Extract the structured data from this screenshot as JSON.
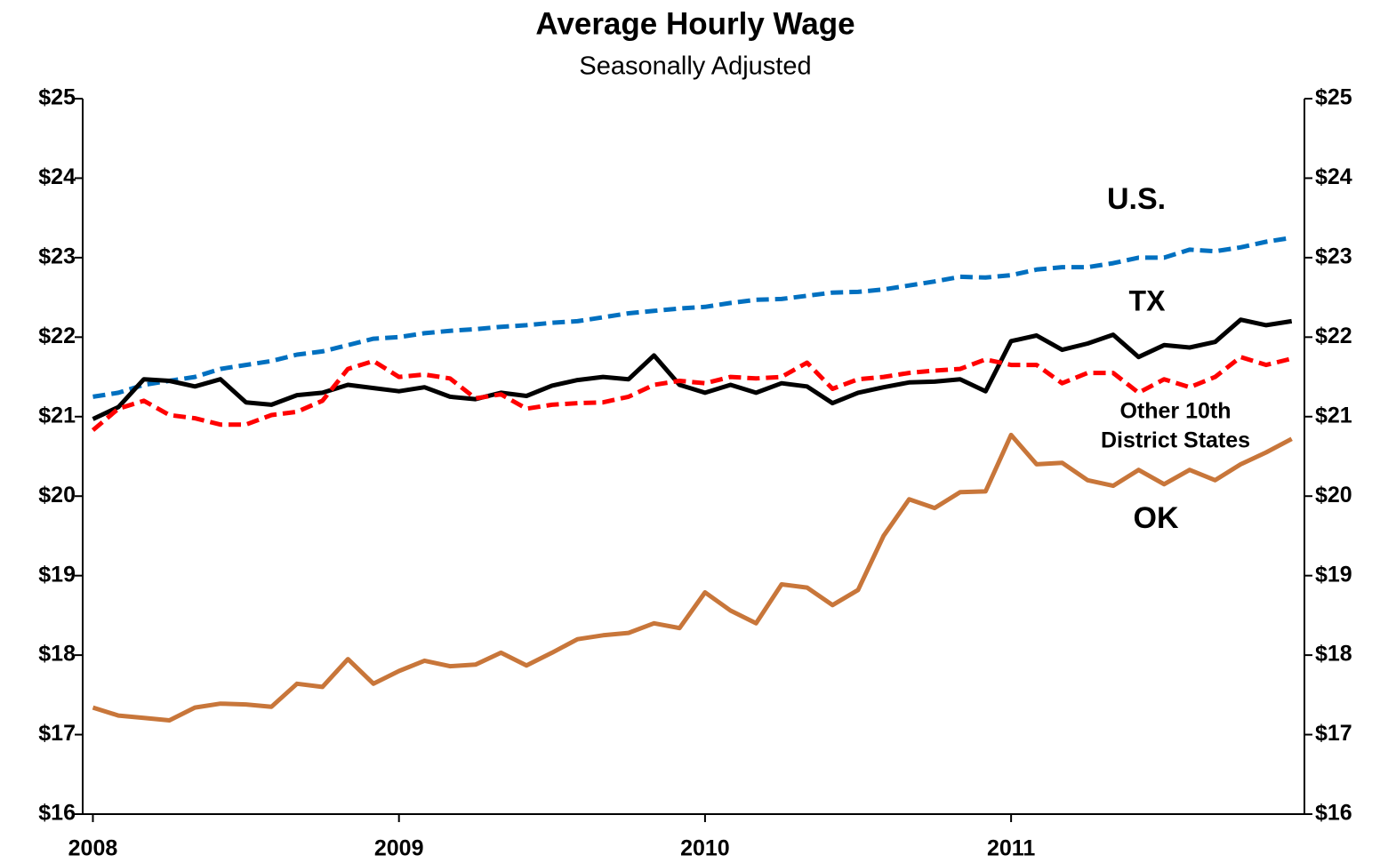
{
  "chart_data": {
    "type": "line",
    "title": "Average Hourly Wage",
    "subtitle": "Seasonally Adjusted",
    "x": [
      0,
      1,
      2,
      3,
      4,
      5,
      6,
      7,
      8,
      9,
      10,
      11,
      12,
      13,
      14,
      15,
      16,
      17,
      18,
      19,
      20,
      21,
      22,
      23,
      24,
      25,
      26,
      27,
      28,
      29,
      30,
      31,
      32,
      33,
      34,
      35,
      36,
      37,
      38,
      39,
      40,
      41,
      42,
      43,
      44,
      45,
      46,
      47
    ],
    "xlim": [
      -0.4,
      47.5
    ],
    "xticks": [
      {
        "value": 0,
        "label": "2008"
      },
      {
        "value": 12,
        "label": "2009"
      },
      {
        "value": 24,
        "label": "2010"
      },
      {
        "value": 36,
        "label": "2011"
      }
    ],
    "ylim": [
      16,
      25
    ],
    "yticks": [
      {
        "value": 16,
        "label": "$16"
      },
      {
        "value": 17,
        "label": "$17"
      },
      {
        "value": 18,
        "label": "$18"
      },
      {
        "value": 19,
        "label": "$19"
      },
      {
        "value": 20,
        "label": "$20"
      },
      {
        "value": 21,
        "label": "$21"
      },
      {
        "value": 22,
        "label": "$22"
      },
      {
        "value": 23,
        "label": "$23"
      },
      {
        "value": 24,
        "label": "$24"
      },
      {
        "value": 25,
        "label": "$25"
      }
    ],
    "y2lim": [
      16,
      25
    ],
    "y2ticks": [
      {
        "value": 16,
        "label": "$16"
      },
      {
        "value": 17,
        "label": "$17"
      },
      {
        "value": 18,
        "label": "$18"
      },
      {
        "value": 19,
        "label": "$19"
      },
      {
        "value": 20,
        "label": "$20"
      },
      {
        "value": 21,
        "label": "$21"
      },
      {
        "value": 22,
        "label": "$22"
      },
      {
        "value": 23,
        "label": "$23"
      },
      {
        "value": 24,
        "label": "$24"
      },
      {
        "value": 25,
        "label": "$25"
      }
    ],
    "series": [
      {
        "name": "U.S.",
        "color": "#0070c0",
        "dashed": true,
        "values": [
          21.25,
          21.3,
          21.4,
          21.45,
          21.5,
          21.6,
          21.65,
          21.7,
          21.78,
          21.82,
          21.9,
          21.98,
          22.0,
          22.05,
          22.08,
          22.1,
          22.13,
          22.15,
          22.18,
          22.2,
          22.25,
          22.3,
          22.33,
          22.36,
          22.38,
          22.43,
          22.47,
          22.48,
          22.52,
          22.56,
          22.57,
          22.6,
          22.65,
          22.7,
          22.76,
          22.75,
          22.78,
          22.85,
          22.88,
          22.88,
          22.93,
          23.0,
          23.0,
          23.1,
          23.08,
          23.13,
          23.2,
          23.25
        ]
      },
      {
        "name": "TX",
        "color": "#000000",
        "dashed": false,
        "values": [
          20.97,
          21.12,
          21.47,
          21.45,
          21.38,
          21.47,
          21.18,
          21.15,
          21.27,
          21.3,
          21.4,
          21.36,
          21.32,
          21.37,
          21.25,
          21.22,
          21.3,
          21.26,
          21.39,
          21.46,
          21.5,
          21.47,
          21.77,
          21.4,
          21.3,
          21.4,
          21.3,
          21.42,
          21.38,
          21.17,
          21.3,
          21.37,
          21.43,
          21.44,
          21.47,
          21.32,
          21.95,
          22.02,
          21.84,
          21.92,
          22.03,
          21.75,
          21.9,
          21.87,
          21.94,
          22.22,
          22.15,
          22.2
        ]
      },
      {
        "name": "Other 10th District States",
        "color": "#ff0000",
        "dashed": true,
        "values": [
          20.83,
          21.1,
          21.2,
          21.02,
          20.98,
          20.9,
          20.9,
          21.02,
          21.06,
          21.2,
          21.6,
          21.7,
          21.5,
          21.53,
          21.48,
          21.23,
          21.28,
          21.1,
          21.15,
          21.17,
          21.18,
          21.25,
          21.4,
          21.45,
          21.42,
          21.5,
          21.48,
          21.5,
          21.68,
          21.35,
          21.47,
          21.5,
          21.55,
          21.58,
          21.6,
          21.72,
          21.65,
          21.65,
          21.42,
          21.55,
          21.55,
          21.3,
          21.47,
          21.37,
          21.5,
          21.75,
          21.65,
          21.73
        ]
      },
      {
        "name": "OK",
        "color": "#c8763a",
        "dashed": false,
        "values": [
          17.34,
          17.24,
          17.21,
          17.18,
          17.34,
          17.39,
          17.38,
          17.35,
          17.64,
          17.6,
          17.95,
          17.64,
          17.8,
          17.93,
          17.86,
          17.88,
          18.03,
          17.87,
          18.03,
          18.2,
          18.25,
          18.28,
          18.4,
          18.34,
          18.79,
          18.56,
          18.4,
          18.89,
          18.85,
          18.63,
          18.82,
          19.5,
          19.96,
          19.85,
          20.05,
          20.06,
          20.77,
          20.4,
          20.42,
          20.2,
          20.13,
          20.33,
          20.15,
          20.33,
          20.2,
          20.4,
          20.55,
          20.72
        ]
      }
    ],
    "annotations": [
      {
        "lines": [
          "U.S."
        ],
        "color": "#0070c0"
      },
      {
        "lines": [
          "TX"
        ],
        "color": "#000000"
      },
      {
        "lines": [
          "Other 10th",
          "District States"
        ],
        "color": "#ff0000"
      },
      {
        "lines": [
          "OK"
        ],
        "color": "#c8763a"
      }
    ]
  }
}
